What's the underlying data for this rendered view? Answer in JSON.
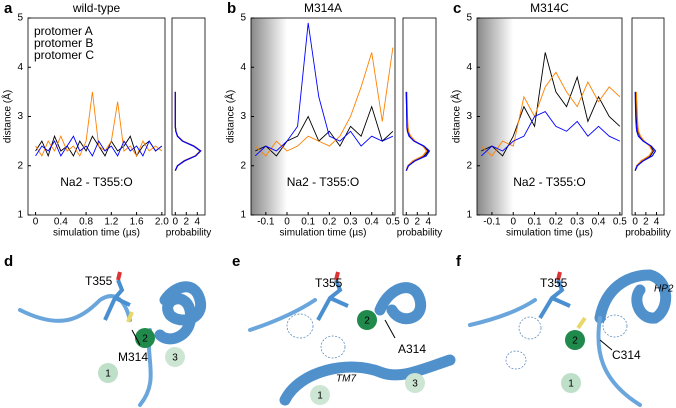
{
  "chart_data": [
    {
      "type": "line",
      "panel_label": "a",
      "title": "wild-type",
      "xlabel": "simulation time (µs)",
      "ylabel": "distance (Å)",
      "annotation": "Na2 - T355:O",
      "legend": "upper left",
      "x": [
        0,
        0.1,
        0.2,
        0.3,
        0.4,
        0.5,
        0.6,
        0.7,
        0.8,
        0.9,
        1.0,
        1.1,
        1.2,
        1.3,
        1.4,
        1.5,
        1.6,
        1.7,
        1.8,
        1.9,
        2.0
      ],
      "series": [
        {
          "name": "protomer A",
          "color": "#000000",
          "values": [
            2.3,
            2.5,
            2.2,
            2.6,
            2.3,
            2.4,
            2.2,
            2.5,
            2.3,
            2.6,
            2.4,
            2.2,
            2.5,
            2.3,
            2.4,
            2.6,
            2.2,
            2.4,
            2.5,
            2.3,
            2.4
          ]
        },
        {
          "name": "protomer B",
          "color": "#ff8000",
          "values": [
            2.4,
            2.2,
            2.5,
            2.3,
            2.6,
            2.3,
            2.4,
            2.2,
            2.5,
            3.5,
            2.4,
            2.3,
            2.5,
            3.3,
            2.3,
            2.4,
            2.2,
            2.5,
            2.3,
            2.4,
            2.3
          ]
        },
        {
          "name": "protomer C",
          "color": "#0000ff",
          "values": [
            2.2,
            2.4,
            2.3,
            2.5,
            2.2,
            2.4,
            2.6,
            2.3,
            2.4,
            2.2,
            2.5,
            2.3,
            2.4,
            2.2,
            2.5,
            2.3,
            2.4,
            2.2,
            2.5,
            2.3,
            2.4
          ]
        }
      ],
      "xlim": [
        -0.12,
        2.05
      ],
      "xticks": [
        0,
        0.4,
        0.8,
        1.2,
        1.6,
        {
          "value": 2,
          "label": "2.0"
        }
      ],
      "ylim": [
        1,
        5
      ],
      "yticks": [
        1,
        2,
        3,
        4,
        5
      ]
    },
    {
      "type": "density",
      "xlabel": "probability",
      "y": [
        1.9,
        2.0,
        2.1,
        2.2,
        2.3,
        2.4,
        2.5,
        2.6,
        2.7,
        2.8,
        3.0,
        3.5
      ],
      "series": [
        {
          "color": "#000000",
          "values": [
            0,
            0.4,
            1.6,
            3.7,
            4.6,
            3.4,
            1.4,
            0.4,
            0.1,
            0,
            0,
            0
          ]
        },
        {
          "color": "#ff8000",
          "values": [
            0,
            0.4,
            1.6,
            3.6,
            4.5,
            3.4,
            1.4,
            0.4,
            0.1,
            0,
            0,
            0
          ]
        },
        {
          "color": "#0000ff",
          "values": [
            0,
            0.4,
            1.7,
            3.7,
            4.6,
            3.3,
            1.3,
            0.4,
            0.1,
            0,
            0,
            0
          ]
        }
      ],
      "xlim": [
        -0.6,
        5.4
      ],
      "xticks": [
        0,
        2,
        4
      ],
      "ylim": [
        1,
        5
      ]
    },
    {
      "type": "line",
      "panel_label": "b",
      "title": "M314A",
      "xlabel": "simulation time (µs)",
      "ylabel": "distance (Å)",
      "annotation": "Na2 - T355:O",
      "shaded_xrange": [
        -0.17,
        0
      ],
      "x": [
        -0.15,
        -0.1,
        -0.05,
        0,
        0.05,
        0.1,
        0.15,
        0.2,
        0.25,
        0.3,
        0.35,
        0.4,
        0.45,
        0.5
      ],
      "series": [
        {
          "color": "#000000",
          "values": [
            2.3,
            2.4,
            2.2,
            2.5,
            2.6,
            3.0,
            2.5,
            2.7,
            2.4,
            2.8,
            2.6,
            3.2,
            2.5,
            2.7
          ]
        },
        {
          "color": "#ff8000",
          "values": [
            2.4,
            2.2,
            2.5,
            2.3,
            2.4,
            2.6,
            2.5,
            2.4,
            2.6,
            3.0,
            3.6,
            4.3,
            2.9,
            4.4
          ]
        },
        {
          "color": "#0000ff",
          "values": [
            2.2,
            2.4,
            2.3,
            2.5,
            2.8,
            4.9,
            3.4,
            2.6,
            2.5,
            2.7,
            2.4,
            2.6,
            2.5,
            2.6
          ]
        }
      ],
      "xlim": [
        -0.17,
        0.51
      ],
      "xticks": [
        -0.1,
        0,
        0.1,
        0.2,
        0.3,
        0.4,
        0.5
      ],
      "ylim": [
        1,
        5
      ],
      "yticks": [
        1,
        2,
        3,
        4,
        5
      ]
    },
    {
      "type": "density",
      "xlabel": "probability",
      "y": [
        1.9,
        2.0,
        2.1,
        2.2,
        2.3,
        2.4,
        2.5,
        2.6,
        2.7,
        2.8,
        3.0,
        3.5
      ],
      "series": [
        {
          "color": "#000000",
          "values": [
            0,
            0.3,
            1.4,
            3.3,
            4.0,
            3.1,
            1.5,
            0.6,
            0.3,
            0.2,
            0.1,
            0
          ]
        },
        {
          "color": "#ff8000",
          "values": [
            0,
            0.3,
            1.2,
            3.0,
            3.7,
            3.0,
            1.6,
            0.8,
            0.4,
            0.3,
            0.2,
            0.1
          ]
        },
        {
          "color": "#0000ff",
          "values": [
            0,
            0.4,
            1.6,
            3.6,
            4.2,
            3.2,
            1.4,
            0.5,
            0.2,
            0.1,
            0.1,
            0
          ]
        }
      ],
      "xlim": [
        -0.6,
        5.4
      ],
      "xticks": [
        0,
        2,
        4
      ],
      "ylim": [
        1,
        5
      ]
    },
    {
      "type": "line",
      "panel_label": "c",
      "title": "M314C",
      "xlabel": "simulation time (µs)",
      "ylabel": "distance (Å)",
      "annotation": "Na2 - T355:O",
      "shaded_xrange": [
        -0.17,
        0
      ],
      "x": [
        -0.15,
        -0.1,
        -0.05,
        0,
        0.05,
        0.1,
        0.15,
        0.2,
        0.25,
        0.3,
        0.35,
        0.4,
        0.45,
        0.5
      ],
      "series": [
        {
          "color": "#000000",
          "values": [
            2.3,
            2.4,
            2.2,
            2.6,
            3.2,
            2.8,
            4.3,
            3.5,
            3.2,
            3.8,
            2.9,
            3.4,
            3.0,
            2.8
          ]
        },
        {
          "color": "#ff8000",
          "values": [
            2.4,
            2.2,
            2.5,
            2.4,
            3.4,
            3.0,
            3.6,
            3.9,
            3.5,
            3.2,
            3.7,
            3.3,
            3.6,
            3.4
          ]
        },
        {
          "color": "#0000ff",
          "values": [
            2.2,
            2.4,
            2.3,
            2.5,
            2.6,
            3.0,
            3.1,
            2.8,
            2.7,
            2.9,
            2.6,
            2.8,
            2.6,
            2.5
          ]
        }
      ],
      "xlim": [
        -0.17,
        0.51
      ],
      "xticks": [
        -0.1,
        0,
        0.1,
        0.2,
        0.3,
        0.4,
        0.5
      ],
      "ylim": [
        1,
        5
      ],
      "yticks": [
        1,
        2,
        3,
        4,
        5
      ]
    },
    {
      "type": "density",
      "xlabel": "probability",
      "y": [
        1.9,
        2.0,
        2.1,
        2.2,
        2.3,
        2.4,
        2.5,
        2.6,
        2.7,
        2.8,
        3.0,
        3.5
      ],
      "series": [
        {
          "color": "#000000",
          "values": [
            0,
            0.3,
            1.2,
            2.8,
            3.4,
            2.8,
            1.6,
            0.9,
            0.5,
            0.4,
            0.3,
            0.1
          ]
        },
        {
          "color": "#ff8000",
          "values": [
            0,
            0.3,
            1.1,
            2.6,
            3.2,
            2.7,
            1.7,
            1.0,
            0.6,
            0.5,
            0.4,
            0.2
          ]
        },
        {
          "color": "#0000ff",
          "values": [
            0,
            0.4,
            1.5,
            3.2,
            3.8,
            3.0,
            1.5,
            0.6,
            0.3,
            0.2,
            0.1,
            0
          ]
        }
      ],
      "xlim": [
        -0.6,
        5.4
      ],
      "xticks": [
        0,
        2,
        4
      ],
      "ylim": [
        1,
        5
      ]
    }
  ],
  "structures": [
    {
      "panel_label": "d",
      "labels": [
        "T355",
        "M314",
        "2",
        "1",
        "3"
      ]
    },
    {
      "panel_label": "e",
      "labels": [
        "T355",
        "A314",
        "2",
        "TM7",
        "1",
        "3"
      ]
    },
    {
      "panel_label": "f",
      "labels": [
        "T355",
        "HP2",
        "C314",
        "2",
        "1"
      ]
    }
  ]
}
